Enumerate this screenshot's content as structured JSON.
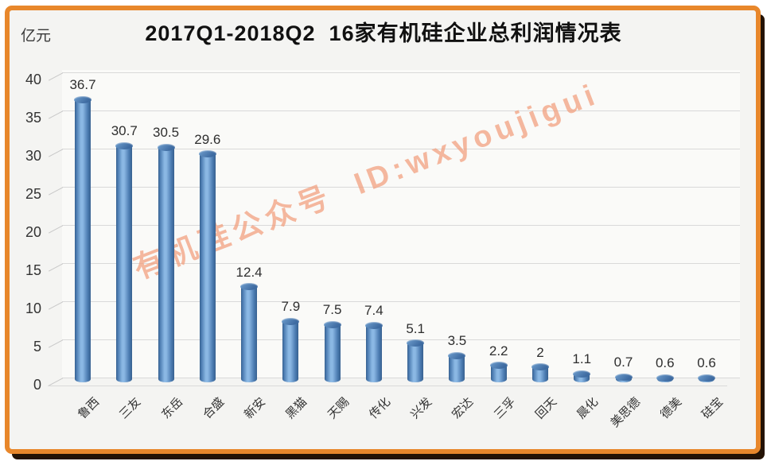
{
  "title": "2017Q1-2018Q2  16家有机硅企业总利润情况表",
  "y_axis_unit": "亿元",
  "watermark": {
    "text": "有机硅公众号  ID:wxyoujigui",
    "color": "#F29E7C"
  },
  "colors": {
    "frame_border": "#E8872B",
    "frame_shadow": "#241305",
    "panel_bg": "#F4F4F2",
    "grid": "#D9D9D9",
    "tick": "#C8C8C8",
    "bar_edge_dark": "#38618F",
    "bar_edge": "#4A7AB0",
    "bar_mid_light": "#8BB8E4",
    "bar_top_dark": "#3E6BA1",
    "bar_top_light": "#6F9FCF"
  },
  "chart_data": {
    "type": "bar",
    "style": "3d-cylinder",
    "title": "2017Q1-2018Q2  16家有机硅企业总利润情况表",
    "xlabel": "",
    "ylabel": "亿元",
    "ylim": [
      0,
      40
    ],
    "y_ticks": [
      0,
      5,
      10,
      15,
      20,
      25,
      30,
      35,
      40
    ],
    "grid": true,
    "legend_position": "none",
    "categories": [
      "鲁西",
      "三友",
      "东岳",
      "合盛",
      "新安",
      "黑猫",
      "天赐",
      "传化",
      "兴发",
      "宏达",
      "三孚",
      "回天",
      "晨化",
      "美思德",
      "德美",
      "硅宝"
    ],
    "values": [
      36.7,
      30.7,
      30.5,
      29.6,
      12.4,
      7.9,
      7.5,
      7.4,
      5.1,
      3.5,
      2.2,
      2,
      1.1,
      0.7,
      0.6,
      0.6
    ],
    "value_labels": [
      "36.7",
      "30.7",
      "30.5",
      "29.6",
      "12.4",
      "7.9",
      "7.5",
      "7.4",
      "5.1",
      "3.5",
      "2.2",
      "2",
      "1.1",
      "0.7",
      "0.6",
      "0.6"
    ]
  }
}
